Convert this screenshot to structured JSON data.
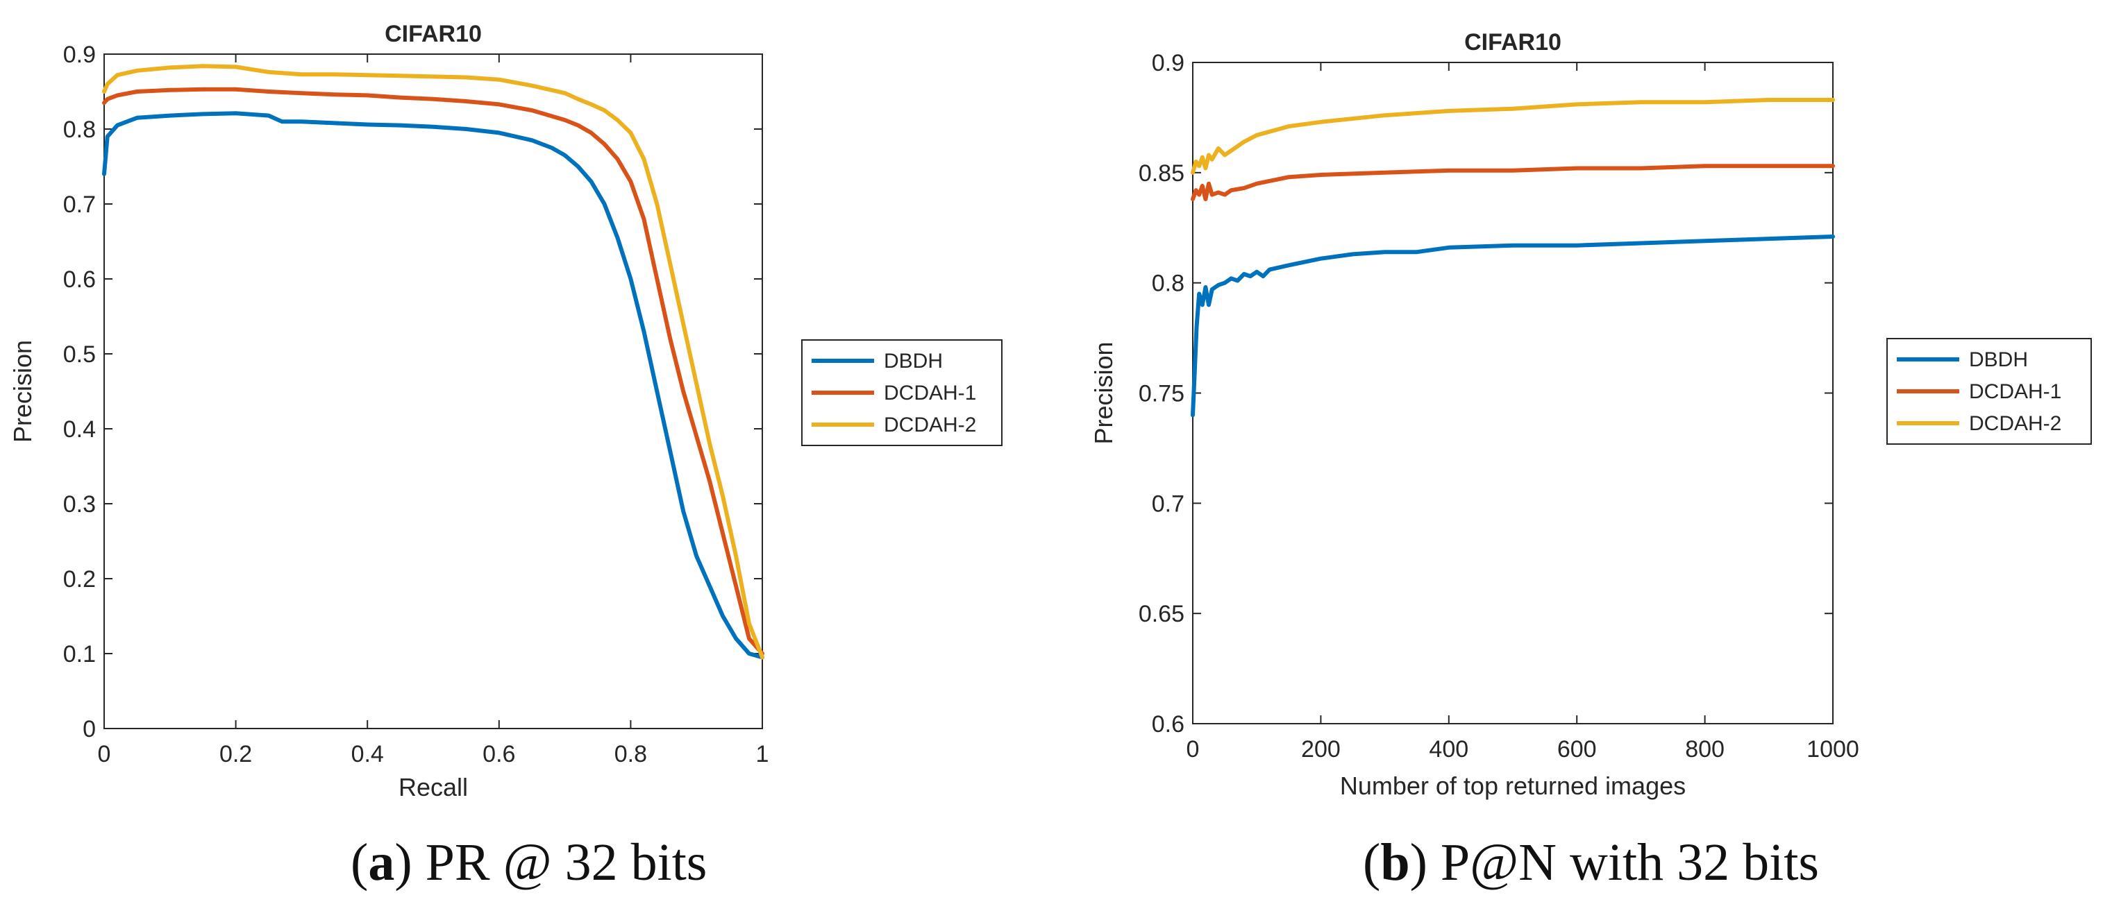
{
  "chart_data": [
    {
      "type": "line",
      "title": "CIFAR10",
      "xlabel": "Recall",
      "ylabel": "Precision",
      "xlim": [
        0,
        1
      ],
      "ylim": [
        0,
        0.9
      ],
      "xticks": [
        0,
        0.2,
        0.4,
        0.6,
        0.8,
        1
      ],
      "xtick_labels": [
        "0",
        "0.2",
        "0.4",
        "0.6",
        "0.8",
        "1"
      ],
      "yticks": [
        0,
        0.1,
        0.2,
        0.3,
        0.4,
        0.5,
        0.6,
        0.7,
        0.8,
        0.9
      ],
      "ytick_labels": [
        "0",
        "0.1",
        "0.2",
        "0.3",
        "0.4",
        "0.5",
        "0.6",
        "0.7",
        "0.8",
        "0.9"
      ],
      "legend_position": "outside-right",
      "series": [
        {
          "name": "DBDH",
          "color": "#0072BD",
          "x": [
            0,
            0.005,
            0.02,
            0.05,
            0.1,
            0.15,
            0.2,
            0.25,
            0.27,
            0.3,
            0.35,
            0.4,
            0.45,
            0.5,
            0.55,
            0.6,
            0.65,
            0.68,
            0.7,
            0.72,
            0.74,
            0.76,
            0.78,
            0.8,
            0.82,
            0.84,
            0.86,
            0.88,
            0.9,
            0.92,
            0.94,
            0.96,
            0.98,
            1.0
          ],
          "y": [
            0.74,
            0.79,
            0.805,
            0.815,
            0.818,
            0.82,
            0.821,
            0.818,
            0.81,
            0.81,
            0.808,
            0.806,
            0.805,
            0.803,
            0.8,
            0.795,
            0.785,
            0.775,
            0.765,
            0.75,
            0.73,
            0.7,
            0.655,
            0.6,
            0.53,
            0.45,
            0.37,
            0.29,
            0.23,
            0.19,
            0.15,
            0.12,
            0.1,
            0.095
          ]
        },
        {
          "name": "DCDAH-1",
          "color": "#D95319",
          "x": [
            0,
            0.005,
            0.02,
            0.05,
            0.1,
            0.15,
            0.2,
            0.25,
            0.3,
            0.35,
            0.4,
            0.45,
            0.5,
            0.55,
            0.6,
            0.65,
            0.7,
            0.72,
            0.74,
            0.76,
            0.78,
            0.8,
            0.82,
            0.84,
            0.86,
            0.88,
            0.9,
            0.92,
            0.94,
            0.96,
            0.98,
            1.0
          ],
          "y": [
            0.835,
            0.84,
            0.845,
            0.85,
            0.852,
            0.853,
            0.853,
            0.85,
            0.848,
            0.846,
            0.845,
            0.842,
            0.84,
            0.837,
            0.833,
            0.825,
            0.812,
            0.805,
            0.795,
            0.78,
            0.76,
            0.73,
            0.68,
            0.6,
            0.52,
            0.45,
            0.39,
            0.33,
            0.26,
            0.19,
            0.12,
            0.1
          ]
        },
        {
          "name": "DCDAH-2",
          "color": "#EDB120",
          "x": [
            0,
            0.005,
            0.02,
            0.05,
            0.1,
            0.15,
            0.2,
            0.25,
            0.3,
            0.35,
            0.4,
            0.45,
            0.5,
            0.55,
            0.6,
            0.65,
            0.7,
            0.72,
            0.74,
            0.76,
            0.78,
            0.8,
            0.82,
            0.84,
            0.86,
            0.88,
            0.9,
            0.92,
            0.94,
            0.96,
            0.98,
            1.0
          ],
          "y": [
            0.85,
            0.86,
            0.872,
            0.878,
            0.882,
            0.884,
            0.883,
            0.876,
            0.873,
            0.873,
            0.872,
            0.871,
            0.87,
            0.869,
            0.866,
            0.858,
            0.848,
            0.84,
            0.833,
            0.825,
            0.812,
            0.795,
            0.76,
            0.7,
            0.62,
            0.54,
            0.46,
            0.38,
            0.31,
            0.23,
            0.14,
            0.095
          ]
        }
      ]
    },
    {
      "type": "line",
      "title": "CIFAR10",
      "xlabel": "Number of top returned images",
      "ylabel": "Precision",
      "xlim": [
        0,
        1000
      ],
      "ylim": [
        0.6,
        0.9
      ],
      "xticks": [
        0,
        200,
        400,
        600,
        800,
        1000
      ],
      "xtick_labels": [
        "0",
        "200",
        "400",
        "600",
        "800",
        "1000"
      ],
      "yticks": [
        0.6,
        0.65,
        0.7,
        0.75,
        0.8,
        0.85,
        0.9
      ],
      "ytick_labels": [
        "0.6",
        "0.65",
        "0.7",
        "0.75",
        "0.8",
        "0.85",
        "0.9"
      ],
      "legend_position": "outside-right",
      "series": [
        {
          "name": "DBDH",
          "color": "#0072BD",
          "x": [
            0,
            3,
            6,
            10,
            15,
            20,
            25,
            30,
            40,
            50,
            60,
            70,
            80,
            90,
            100,
            110,
            120,
            150,
            200,
            250,
            300,
            350,
            400,
            500,
            600,
            700,
            800,
            900,
            1000
          ],
          "y": [
            0.74,
            0.76,
            0.78,
            0.795,
            0.79,
            0.798,
            0.79,
            0.797,
            0.799,
            0.8,
            0.802,
            0.801,
            0.804,
            0.803,
            0.805,
            0.803,
            0.806,
            0.808,
            0.811,
            0.813,
            0.814,
            0.814,
            0.816,
            0.817,
            0.817,
            0.818,
            0.819,
            0.82,
            0.821
          ]
        },
        {
          "name": "DCDAH-1",
          "color": "#D95319",
          "x": [
            0,
            5,
            10,
            15,
            20,
            25,
            30,
            40,
            50,
            60,
            80,
            100,
            150,
            200,
            300,
            400,
            500,
            600,
            700,
            800,
            900,
            1000
          ],
          "y": [
            0.838,
            0.842,
            0.84,
            0.844,
            0.838,
            0.845,
            0.84,
            0.841,
            0.84,
            0.842,
            0.843,
            0.845,
            0.848,
            0.849,
            0.85,
            0.851,
            0.851,
            0.852,
            0.852,
            0.853,
            0.853,
            0.853
          ]
        },
        {
          "name": "DCDAH-2",
          "color": "#EDB120",
          "x": [
            0,
            5,
            10,
            15,
            20,
            25,
            30,
            40,
            50,
            60,
            80,
            100,
            150,
            200,
            300,
            400,
            500,
            600,
            700,
            800,
            900,
            1000
          ],
          "y": [
            0.85,
            0.855,
            0.853,
            0.857,
            0.852,
            0.858,
            0.856,
            0.861,
            0.858,
            0.86,
            0.864,
            0.867,
            0.871,
            0.873,
            0.876,
            0.878,
            0.879,
            0.881,
            0.882,
            0.882,
            0.883,
            0.883
          ]
        }
      ]
    }
  ],
  "captions": [
    {
      "letter": "a",
      "text": " PR @ 32 bits"
    },
    {
      "letter": "b",
      "text": " P@N with 32 bits"
    }
  ]
}
